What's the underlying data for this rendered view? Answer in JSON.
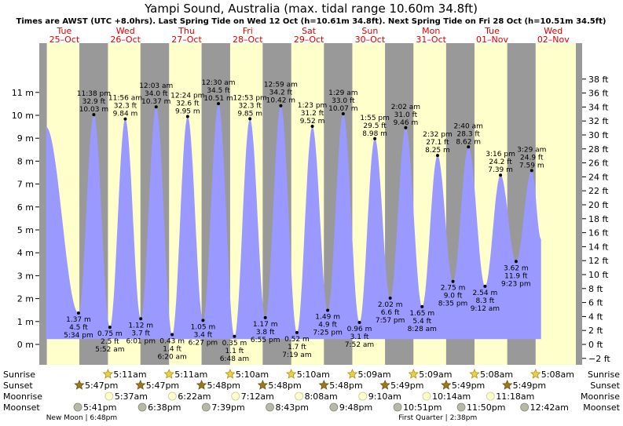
{
  "title": "Yampi Sound, Australia (max. tidal range 10.60m 34.8ft)",
  "subtitle": "Times are AWST (UTC +8.0hrs). Last Spring Tide on Wed 12 Oct (h=10.61m 34.8ft). Next Spring Tide on Fri 28 Oct (h=10.51m 34.5ft)",
  "colors": {
    "tide": "#9999ff",
    "day": "#ffffcc",
    "night": "#999999",
    "axis_bg": "#999999",
    "day_label": "#e00000"
  },
  "days": [
    {
      "name": "Tue",
      "date": "25–Oct"
    },
    {
      "name": "Wed",
      "date": "26–Oct"
    },
    {
      "name": "Thu",
      "date": "27–Oct"
    },
    {
      "name": "Fri",
      "date": "28–Oct"
    },
    {
      "name": "Sat",
      "date": "29–Oct"
    },
    {
      "name": "Sun",
      "date": "30–Oct"
    },
    {
      "name": "Mon",
      "date": "31–Oct"
    },
    {
      "name": "Tue",
      "date": "01–Nov"
    },
    {
      "name": "Wed",
      "date": "02–Nov"
    }
  ],
  "chart_data": {
    "type": "area",
    "x_unit": "days from 00:00 Tue 25-Oct",
    "y_left": {
      "unit": "m",
      "ticks": [
        0,
        1,
        2,
        3,
        4,
        5,
        6,
        7,
        8,
        9,
        10,
        11
      ],
      "labels": [
        "0 m",
        "1 m",
        "2 m",
        "3 m",
        "4 m",
        "5 m",
        "6 m",
        "7 m",
        "8 m",
        "9 m",
        "10 m",
        "11 m"
      ]
    },
    "y_right": {
      "unit": "ft",
      "labels": [
        "−2 ft",
        "0 ft",
        "2 ft",
        "4 ft",
        "6 ft",
        "8 ft",
        "10 ft",
        "12 ft",
        "14 ft",
        "16 ft",
        "18 ft",
        "20 ft",
        "22 ft",
        "24 ft",
        "26 ft",
        "28 ft",
        "30 ft",
        "32 ft",
        "34 ft",
        "36 ft",
        "38 ft"
      ]
    },
    "unlabeled_start": {
      "x": 0.2,
      "y": 9.5
    },
    "tides": [
      {
        "x": 0.732,
        "y": 1.37,
        "lines": [
          "1.37 m",
          "4.5 ft",
          "5:34 pm"
        ],
        "type": "low"
      },
      {
        "x": 0.982,
        "y": 10.03,
        "lines": [
          "11:38 pm",
          "32.9 ft",
          "10.03 m"
        ],
        "type": "high"
      },
      {
        "x": 1.245,
        "y": 0.75,
        "lines": [
          "0.75 m",
          "2.5 ft",
          "5:52 am"
        ],
        "type": "low"
      },
      {
        "x": 1.497,
        "y": 9.84,
        "lines": [
          "11:56 am",
          "32.3 ft",
          "9.84 m"
        ],
        "type": "high"
      },
      {
        "x": 1.751,
        "y": 1.12,
        "lines": [
          "1.12 m",
          "3.7 ft",
          "6:01 pm"
        ],
        "type": "low"
      },
      {
        "x": 2.002,
        "y": 10.37,
        "lines": [
          "12:03 am",
          "34.0 ft",
          "10.37 m"
        ],
        "type": "high"
      },
      {
        "x": 2.264,
        "y": 0.43,
        "lines": [
          "0.43 m",
          "1.4 ft",
          "6:20 am"
        ],
        "type": "low"
      },
      {
        "x": 2.517,
        "y": 9.95,
        "lines": [
          "12:24 pm",
          "32.6 ft",
          "9.95 m"
        ],
        "type": "high"
      },
      {
        "x": 2.769,
        "y": 1.05,
        "lines": [
          "1.05 m",
          "3.4 ft",
          "6:27 pm"
        ],
        "type": "low"
      },
      {
        "x": 3.021,
        "y": 10.51,
        "lines": [
          "12:30 am",
          "34.5 ft",
          "10.51 m"
        ],
        "type": "high"
      },
      {
        "x": 3.283,
        "y": 0.35,
        "lines": [
          "0.35 m",
          "1.1 ft",
          "6:48 am"
        ],
        "type": "low"
      },
      {
        "x": 3.537,
        "y": 9.85,
        "lines": [
          "12:53 pm",
          "32.3 ft",
          "9.85 m"
        ],
        "type": "high"
      },
      {
        "x": 3.788,
        "y": 1.17,
        "lines": [
          "1.17 m",
          "3.8 ft",
          "6:55 pm"
        ],
        "type": "low"
      },
      {
        "x": 4.041,
        "y": 10.42,
        "lines": [
          "12:59 am",
          "34.2 ft",
          "10.42 m"
        ],
        "type": "high"
      },
      {
        "x": 4.305,
        "y": 0.52,
        "lines": [
          "0.52 m",
          "1.7 ft",
          "7:19 am"
        ],
        "type": "low"
      },
      {
        "x": 4.557,
        "y": 9.52,
        "lines": [
          "1:23 pm",
          "31.2 ft",
          "9.52 m"
        ],
        "type": "high"
      },
      {
        "x": 4.809,
        "y": 1.49,
        "lines": [
          "1.49 m",
          "4.9 ft",
          "7:25 pm"
        ],
        "type": "low"
      },
      {
        "x": 5.062,
        "y": 10.07,
        "lines": [
          "1:29 am",
          "33.0 ft",
          "10.07 m"
        ],
        "type": "high"
      },
      {
        "x": 5.328,
        "y": 0.96,
        "lines": [
          "0.96 m",
          "3.1 ft",
          "7:52 am"
        ],
        "type": "low"
      },
      {
        "x": 5.58,
        "y": 8.98,
        "lines": [
          "1:55 pm",
          "29.5 ft",
          "8.98 m"
        ],
        "type": "high"
      },
      {
        "x": 5.831,
        "y": 2.02,
        "lines": [
          "2.02 m",
          "6.6 ft",
          "7:57 pm"
        ],
        "type": "low"
      },
      {
        "x": 6.085,
        "y": 9.46,
        "lines": [
          "2:02 am",
          "31.0 ft",
          "9.46 m"
        ],
        "type": "high"
      },
      {
        "x": 6.353,
        "y": 1.65,
        "lines": [
          "1.65 m",
          "5.4 ft",
          "8:28 am"
        ],
        "type": "low"
      },
      {
        "x": 6.606,
        "y": 8.25,
        "lines": [
          "2:32 pm",
          "27.1 ft",
          "8.25 m"
        ],
        "type": "high"
      },
      {
        "x": 6.858,
        "y": 2.75,
        "lines": [
          "2.75 m",
          "9.0 ft",
          "8:35 pm"
        ],
        "type": "low"
      },
      {
        "x": 7.111,
        "y": 8.62,
        "lines": [
          "2:40 am",
          "28.3 ft",
          "8.62 m"
        ],
        "type": "high"
      },
      {
        "x": 7.383,
        "y": 2.54,
        "lines": [
          "2.54 m",
          "8.3 ft",
          "9:12 am"
        ],
        "type": "low"
      },
      {
        "x": 7.636,
        "y": 7.39,
        "lines": [
          "3:16 pm",
          "24.2 ft",
          "7.39 m"
        ],
        "type": "high"
      },
      {
        "x": 7.89,
        "y": 3.62,
        "lines": [
          "3.62 m",
          "11.9 ft",
          "9:23 pm"
        ],
        "type": "low"
      },
      {
        "x": 8.146,
        "y": 7.59,
        "lines": [
          "3:29 am",
          "24.9 ft",
          "7.59 m"
        ],
        "type": "high"
      }
    ],
    "unlabeled_end": {
      "x": 8.3,
      "y": 4.6
    },
    "night_bands": [
      [
        0.0,
        0.2135
      ],
      [
        0.745,
        1.2135
      ],
      [
        1.745,
        2.2135
      ],
      [
        2.745,
        3.2125
      ],
      [
        3.745,
        4.2125
      ],
      [
        4.7465,
        5.2115
      ],
      [
        5.7465,
        6.2115
      ],
      [
        6.7465,
        7.2105
      ],
      [
        7.7465,
        8.2105
      ]
    ]
  },
  "rows": {
    "labels": {
      "sunrise": "Sunrise",
      "sunset": "Sunset",
      "moonrise": "Moonrise",
      "moonset": "Moonset"
    },
    "sunrise": [
      {
        "x": 1.2135,
        "t": "5:11am"
      },
      {
        "x": 2.2135,
        "t": "5:11am"
      },
      {
        "x": 3.2125,
        "t": "5:10am"
      },
      {
        "x": 4.2125,
        "t": "5:10am"
      },
      {
        "x": 5.2115,
        "t": "5:09am"
      },
      {
        "x": 6.2115,
        "t": "5:09am"
      },
      {
        "x": 7.2105,
        "t": "5:08am"
      },
      {
        "x": 8.2105,
        "t": "5:08am"
      }
    ],
    "sunset": [
      {
        "x": 0.745,
        "t": "5:47pm"
      },
      {
        "x": 1.745,
        "t": "5:47pm"
      },
      {
        "x": 2.745,
        "t": "5:48pm"
      },
      {
        "x": 3.745,
        "t": "5:48pm"
      },
      {
        "x": 4.7465,
        "t": "5:48pm"
      },
      {
        "x": 5.7465,
        "t": "5:49pm"
      },
      {
        "x": 6.7465,
        "t": "5:49pm"
      },
      {
        "x": 7.7465,
        "t": "5:49pm"
      }
    ],
    "moonrise": [
      {
        "x": 1.232,
        "t": "5:37am"
      },
      {
        "x": 2.266,
        "t": "6:22am"
      },
      {
        "x": 3.3,
        "t": "7:12am"
      },
      {
        "x": 4.339,
        "t": "8:08am"
      },
      {
        "x": 5.382,
        "t": "9:10am"
      },
      {
        "x": 6.427,
        "t": "10:14am"
      },
      {
        "x": 7.471,
        "t": "11:18am"
      }
    ],
    "moonset": [
      {
        "x": 0.72,
        "t": "5:41pm"
      },
      {
        "x": 1.775,
        "t": "6:38pm"
      },
      {
        "x": 2.819,
        "t": "7:39pm"
      },
      {
        "x": 3.863,
        "t": "8:43pm"
      },
      {
        "x": 4.908,
        "t": "9:48pm"
      },
      {
        "x": 5.952,
        "t": "10:51pm"
      },
      {
        "x": 6.993,
        "t": "11:50pm"
      },
      {
        "x": 8.029,
        "t": "12:42am"
      }
    ],
    "phases": [
      {
        "x": 0.783,
        "t": "New Moon | 6:48pm"
      },
      {
        "x": 6.61,
        "t": "First Quarter | 2:38pm"
      }
    ]
  }
}
